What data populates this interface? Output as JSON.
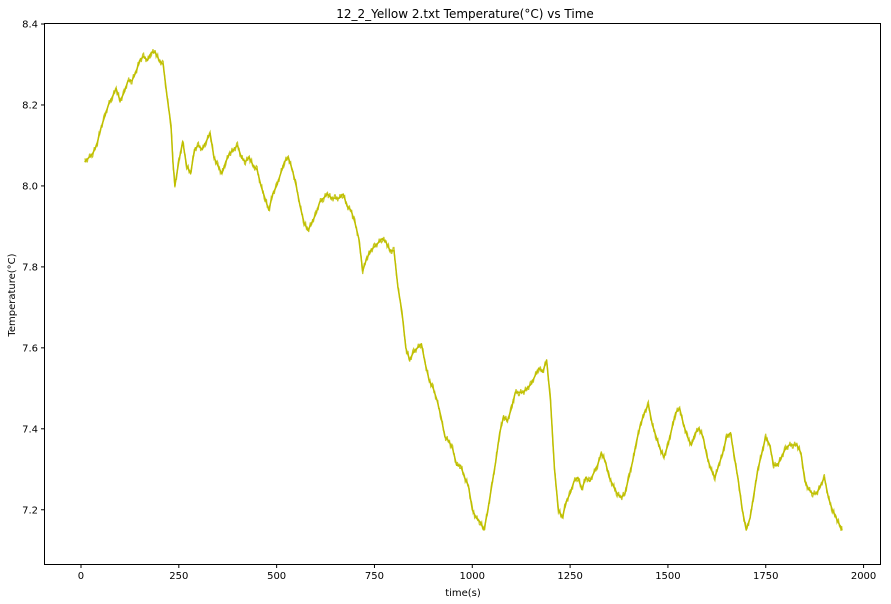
{
  "chart_data": {
    "type": "line",
    "title": "12_2_Yellow 2.txt  Temperature(°C) vs Time",
    "xlabel": "time(s)",
    "ylabel": "Temperature(°C)",
    "xlim": [
      -92,
      2042
    ],
    "ylim": [
      7.066,
      8.4
    ],
    "x_ticks": [
      0,
      250,
      500,
      750,
      1000,
      1250,
      1500,
      1750,
      2000
    ],
    "x_tick_labels": [
      "0",
      "250",
      "500",
      "750",
      "1000",
      "1250",
      "1500",
      "1750",
      "2000"
    ],
    "y_ticks": [
      7.2,
      7.4,
      7.6,
      7.8,
      8.0,
      8.2,
      8.4
    ],
    "y_tick_labels": [
      "7.2",
      "7.4",
      "7.6",
      "7.8",
      "8.0",
      "8.2",
      "8.4"
    ],
    "grid": false,
    "legend": "none",
    "line_color": "#bfbf00",
    "series": [
      {
        "x": [
          10,
          20,
          30,
          40,
          50,
          60,
          70,
          80,
          90,
          100,
          110,
          120,
          130,
          140,
          150,
          160,
          170,
          180,
          190,
          200,
          210,
          220,
          230,
          235,
          240,
          250,
          260,
          270,
          280,
          290,
          300,
          310,
          320,
          330,
          340,
          350,
          360,
          370,
          380,
          390,
          400,
          410,
          420,
          430,
          440,
          450,
          460,
          470,
          480,
          490,
          500,
          510,
          520,
          530,
          540,
          550,
          560,
          570,
          580,
          590,
          600,
          610,
          620,
          630,
          640,
          650,
          660,
          670,
          680,
          690,
          700,
          710,
          720,
          730,
          740,
          750,
          760,
          770,
          780,
          790,
          800,
          810,
          820,
          830,
          840,
          850,
          860,
          870,
          880,
          890,
          900,
          910,
          920,
          930,
          940,
          950,
          960,
          970,
          980,
          990,
          1000,
          1010,
          1020,
          1030,
          1040,
          1050,
          1060,
          1070,
          1080,
          1090,
          1100,
          1110,
          1120,
          1130,
          1140,
          1150,
          1160,
          1170,
          1180,
          1190,
          1200,
          1210,
          1220,
          1230,
          1240,
          1250,
          1260,
          1270,
          1280,
          1290,
          1300,
          1310,
          1320,
          1330,
          1340,
          1350,
          1360,
          1370,
          1380,
          1390,
          1400,
          1410,
          1420,
          1430,
          1440,
          1450,
          1460,
          1470,
          1480,
          1490,
          1500,
          1510,
          1520,
          1530,
          1540,
          1550,
          1560,
          1570,
          1580,
          1590,
          1600,
          1610,
          1620,
          1630,
          1640,
          1650,
          1660,
          1670,
          1680,
          1690,
          1700,
          1710,
          1720,
          1730,
          1740,
          1750,
          1760,
          1770,
          1780,
          1790,
          1800,
          1810,
          1820,
          1830,
          1840,
          1850,
          1860,
          1870,
          1880,
          1890,
          1900,
          1910,
          1920,
          1930,
          1940,
          1945
        ],
        "values": [
          8.06,
          8.07,
          8.08,
          8.1,
          8.14,
          8.17,
          8.2,
          8.22,
          8.24,
          8.21,
          8.23,
          8.26,
          8.26,
          8.28,
          8.31,
          8.32,
          8.31,
          8.33,
          8.33,
          8.31,
          8.3,
          8.22,
          8.15,
          8.06,
          8.0,
          8.06,
          8.11,
          8.05,
          8.03,
          8.09,
          8.1,
          8.09,
          8.11,
          8.13,
          8.07,
          8.05,
          8.03,
          8.06,
          8.08,
          8.09,
          8.1,
          8.07,
          8.06,
          8.07,
          8.05,
          8.04,
          8.0,
          7.97,
          7.94,
          7.98,
          8.0,
          8.03,
          8.06,
          8.07,
          8.04,
          8.0,
          7.95,
          7.91,
          7.89,
          7.91,
          7.93,
          7.96,
          7.97,
          7.98,
          7.97,
          7.97,
          7.97,
          7.98,
          7.95,
          7.94,
          7.91,
          7.87,
          7.79,
          7.82,
          7.84,
          7.85,
          7.86,
          7.87,
          7.86,
          7.84,
          7.84,
          7.75,
          7.69,
          7.6,
          7.57,
          7.59,
          7.6,
          7.61,
          7.56,
          7.52,
          7.5,
          7.47,
          7.43,
          7.38,
          7.37,
          7.35,
          7.31,
          7.31,
          7.28,
          7.26,
          7.2,
          7.18,
          7.17,
          7.15,
          7.2,
          7.26,
          7.32,
          7.39,
          7.43,
          7.42,
          7.45,
          7.49,
          7.49,
          7.49,
          7.5,
          7.51,
          7.53,
          7.55,
          7.54,
          7.57,
          7.47,
          7.3,
          7.2,
          7.18,
          7.22,
          7.24,
          7.27,
          7.28,
          7.25,
          7.28,
          7.27,
          7.29,
          7.31,
          7.34,
          7.32,
          7.28,
          7.26,
          7.24,
          7.23,
          7.24,
          7.28,
          7.32,
          7.37,
          7.41,
          7.44,
          7.46,
          7.41,
          7.38,
          7.35,
          7.33,
          7.36,
          7.4,
          7.44,
          7.45,
          7.41,
          7.38,
          7.36,
          7.39,
          7.4,
          7.38,
          7.33,
          7.3,
          7.28,
          7.31,
          7.34,
          7.38,
          7.39,
          7.33,
          7.27,
          7.2,
          7.15,
          7.18,
          7.24,
          7.3,
          7.34,
          7.38,
          7.36,
          7.31,
          7.31,
          7.33,
          7.35,
          7.36,
          7.36,
          7.36,
          7.34,
          7.27,
          7.25,
          7.24,
          7.24,
          7.26,
          7.28,
          7.23,
          7.2,
          7.18,
          7.16,
          7.15
        ]
      }
    ]
  }
}
